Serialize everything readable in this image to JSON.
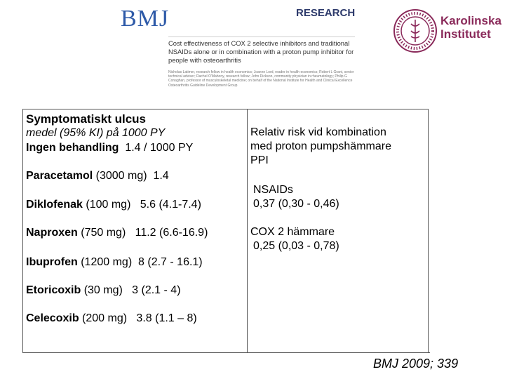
{
  "header": {
    "bmj_logo": "BMJ",
    "research": "RESEARCH",
    "paper_title": "Cost effectiveness of COX 2 selective inhibitors and traditional NSAIDs alone or in combination with a proton pump inhibitor for people with osteoarthritis",
    "paper_authors": "Nicholas Latimer, research fellow in health economics; Joanne Lord, reader in health economics; Robert L Grant, senior technical adviser; Rachel O'Mahony, research fellow; John Dickson, community physician in rheumatology; Philip G Conaghan, professor of musculoskeletal medicine; on behalf of the National Institute for Health and Clinical Excellence Osteoarthritis Guideline Development Group",
    "institution_line1": "Karolinska",
    "institution_line2": "Institutet"
  },
  "left": {
    "heading": "Symptomatiskt ulcus",
    "subheading": "medel (95% KI) på 1000 PY",
    "no_treatment": {
      "name": "Ingen behandling",
      "value": "1.4 / 1000 PY"
    },
    "drugs": [
      {
        "name": "Paracetamol",
        "dose": "(3000 mg)",
        "value": "1.4"
      },
      {
        "name": "Diklofenak",
        "dose": "(100 mg)",
        "value": "5.6 (4.1-7.4)"
      },
      {
        "name": "Naproxen",
        "dose": "(750 mg)",
        "value": "11.2 (6.6-16.9)"
      },
      {
        "name": "Ibuprofen",
        "dose": "(1200 mg)",
        "value": "8 (2.7 - 16.1)"
      },
      {
        "name": "Etoricoxib",
        "dose": "(30 mg)",
        "value": "3 (2.1 - 4)"
      },
      {
        "name": "Celecoxib",
        "dose": "(200 mg)",
        "value": "3.8 (1.1 – 8)"
      }
    ]
  },
  "right": {
    "heading_lines": [
      "Relativ risk vid kombination",
      "med proton pumpshämmare",
      "PPI"
    ],
    "nsaids_label": "NSAIDs",
    "nsaids_value": "0,37 (0,30 - 0,46)",
    "cox2_label": "COX 2 hämmare",
    "cox2_value": "0,25 (0,03 - 0,78)"
  },
  "footer": {
    "citation": "BMJ 2009; 339"
  },
  "colors": {
    "bmj_blue": "#2e5aa8",
    "research_navy": "#2d3a6b",
    "ki_plum": "#8a2a5a"
  }
}
